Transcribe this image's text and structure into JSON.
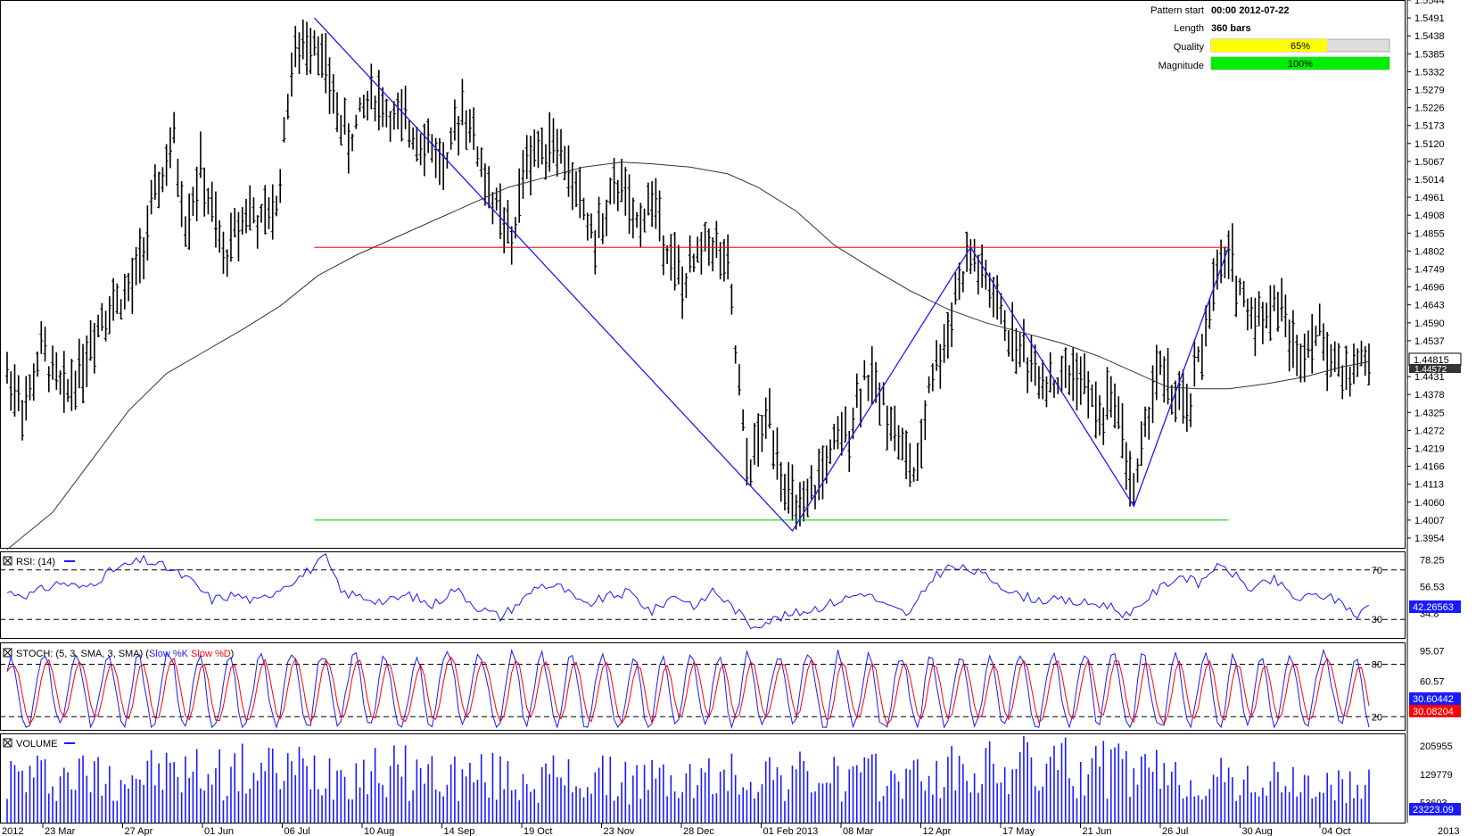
{
  "pattern_info": {
    "start_label": "Pattern start",
    "start_value": "00:00 2012-07-22",
    "length_label": "Length",
    "length_value": "360 bars",
    "quality_label": "Quality",
    "quality_value": "65%",
    "quality_fraction": 0.65,
    "magnitude_label": "Magnitude",
    "magnitude_value": "100%",
    "magnitude_fraction": 1.0
  },
  "colors": {
    "price_bar": "#000000",
    "pattern_line": "#1a1aff",
    "resistance": "#ff0000",
    "support": "#00cc00",
    "moving_average": "#333333",
    "rsi": "#1a1aff",
    "stoch_k": "#1a1aff",
    "stoch_d": "#ff0000",
    "volume": "#1a1aff",
    "quality_bar": "#ffff00",
    "magnitude_bar": "#00ee00"
  },
  "chart_data": {
    "type": "ohlc",
    "x_axis": {
      "labels": [
        "2012",
        "23 Mar",
        "27 Apr",
        "01 Jun",
        "06 Jul",
        "10 Aug",
        "14 Sep",
        "19 Oct",
        "23 Nov",
        "28 Dec",
        "01 Feb 2013",
        "08 Mar",
        "12 Apr",
        "17 May",
        "21 Jun",
        "26 Jul",
        "30 Aug",
        "04 Oct",
        "2013"
      ],
      "bar_count": 360
    },
    "price_panel": {
      "ylim": [
        1.3925,
        1.5544
      ],
      "y_ticks": [
        "1.5544",
        "1.5491",
        "1.5438",
        "1.5385",
        "1.5332",
        "1.5279",
        "1.5226",
        "1.5173",
        "1.5120",
        "1.5067",
        "1.5014",
        "1.4961",
        "1.4908",
        "1.4855",
        "1.4802",
        "1.4749",
        "1.4696",
        "1.4643",
        "1.4590",
        "1.4537",
        "1.4431",
        "1.4378",
        "1.4325",
        "1.4272",
        "1.4219",
        "1.4166",
        "1.4113",
        "1.4060",
        "1.4007",
        "1.3954"
      ],
      "current_price": "1.44815",
      "ma_price": "1.44572",
      "resistance_level": 1.4813,
      "support_level": 1.4007,
      "pattern_points": [
        {
          "bar": 81,
          "price": 1.5491
        },
        {
          "bar": 207,
          "price": 1.3975
        },
        {
          "bar": 254,
          "price": 1.4813
        },
        {
          "bar": 297,
          "price": 1.4048
        },
        {
          "bar": 322,
          "price": 1.4813
        }
      ],
      "price_path": [
        [
          0,
          1.444
        ],
        [
          5,
          1.434
        ],
        [
          9,
          1.451
        ],
        [
          15,
          1.438
        ],
        [
          20,
          1.447
        ],
        [
          25,
          1.462
        ],
        [
          33,
          1.469
        ],
        [
          40,
          1.4995
        ],
        [
          44,
          1.512
        ],
        [
          47,
          1.488
        ],
        [
          51,
          1.504
        ],
        [
          57,
          1.478
        ],
        [
          63,
          1.493
        ],
        [
          67,
          1.488
        ],
        [
          71,
          1.493
        ],
        [
          75,
          1.535
        ],
        [
          81,
          1.545
        ],
        [
          86,
          1.525
        ],
        [
          90,
          1.512
        ],
        [
          96,
          1.528
        ],
        [
          102,
          1.519
        ],
        [
          110,
          1.514
        ],
        [
          116,
          1.504
        ],
        [
          120,
          1.525
        ],
        [
          127,
          1.498
        ],
        [
          133,
          1.482
        ],
        [
          137,
          1.508
        ],
        [
          144,
          1.514
        ],
        [
          150,
          1.498
        ],
        [
          155,
          1.483
        ],
        [
          162,
          1.502
        ],
        [
          165,
          1.486
        ],
        [
          170,
          1.496
        ],
        [
          178,
          1.469
        ],
        [
          185,
          1.485
        ],
        [
          190,
          1.474
        ],
        [
          195,
          1.415
        ],
        [
          201,
          1.432
        ],
        [
          206,
          1.407
        ],
        [
          210,
          1.401
        ],
        [
          215,
          1.416
        ],
        [
          222,
          1.428
        ],
        [
          226,
          1.444
        ],
        [
          232,
          1.434
        ],
        [
          236,
          1.421
        ],
        [
          240,
          1.4125
        ],
        [
          243,
          1.442
        ],
        [
          247,
          1.452
        ],
        [
          250,
          1.468
        ],
        [
          254,
          1.479
        ],
        [
          258,
          1.471
        ],
        [
          264,
          1.456
        ],
        [
          270,
          1.447
        ],
        [
          276,
          1.441
        ],
        [
          282,
          1.445
        ],
        [
          288,
          1.431
        ],
        [
          292,
          1.438
        ],
        [
          297,
          1.408
        ],
        [
          300,
          1.427
        ],
        [
          303,
          1.446
        ],
        [
          307,
          1.438
        ],
        [
          311,
          1.432
        ],
        [
          314,
          1.447
        ],
        [
          318,
          1.469
        ],
        [
          322,
          1.479
        ],
        [
          327,
          1.463
        ],
        [
          331,
          1.461
        ],
        [
          335,
          1.466
        ],
        [
          340,
          1.449
        ],
        [
          344,
          1.457
        ],
        [
          348,
          1.452
        ],
        [
          352,
          1.443
        ],
        [
          356,
          1.447
        ],
        [
          359,
          1.448
        ]
      ],
      "moving_average_path": [
        [
          0,
          1.392
        ],
        [
          12,
          1.403
        ],
        [
          22,
          1.418
        ],
        [
          32,
          1.433
        ],
        [
          42,
          1.444
        ],
        [
          52,
          1.4505
        ],
        [
          62,
          1.457
        ],
        [
          72,
          1.464
        ],
        [
          82,
          1.473
        ],
        [
          92,
          1.479
        ],
        [
          102,
          1.484
        ],
        [
          112,
          1.489
        ],
        [
          122,
          1.494
        ],
        [
          132,
          1.499
        ],
        [
          142,
          1.502
        ],
        [
          152,
          1.505
        ],
        [
          162,
          1.5065
        ],
        [
          170,
          1.506
        ],
        [
          180,
          1.505
        ],
        [
          190,
          1.503
        ],
        [
          198,
          1.499
        ],
        [
          208,
          1.492
        ],
        [
          218,
          1.482
        ],
        [
          228,
          1.475
        ],
        [
          238,
          1.4685
        ],
        [
          248,
          1.463
        ],
        [
          258,
          1.459
        ],
        [
          268,
          1.456
        ],
        [
          278,
          1.453
        ],
        [
          288,
          1.449
        ],
        [
          296,
          1.445
        ],
        [
          306,
          1.44
        ],
        [
          314,
          1.4395
        ],
        [
          322,
          1.4395
        ],
        [
          332,
          1.441
        ],
        [
          342,
          1.443
        ],
        [
          352,
          1.446
        ],
        [
          359,
          1.4475
        ]
      ]
    },
    "rsi_panel": {
      "title": "RSI: (14)",
      "ylim": [
        15,
        85
      ],
      "levels": [
        70,
        30
      ],
      "level_labels": [
        "70",
        "30"
      ],
      "right_ticks": [
        "78.25",
        "56.53",
        "34.8"
      ],
      "current": "42.26563",
      "path": [
        [
          0,
          52
        ],
        [
          6,
          50
        ],
        [
          14,
          60
        ],
        [
          20,
          55
        ],
        [
          28,
          70
        ],
        [
          36,
          78
        ],
        [
          42,
          72
        ],
        [
          48,
          62
        ],
        [
          54,
          46
        ],
        [
          60,
          50
        ],
        [
          66,
          44
        ],
        [
          72,
          56
        ],
        [
          78,
          66
        ],
        [
          84,
          80
        ],
        [
          88,
          52
        ],
        [
          94,
          48
        ],
        [
          100,
          44
        ],
        [
          106,
          50
        ],
        [
          112,
          41
        ],
        [
          118,
          55
        ],
        [
          124,
          40
        ],
        [
          130,
          32
        ],
        [
          136,
          46
        ],
        [
          140,
          58
        ],
        [
          146,
          56
        ],
        [
          152,
          41
        ],
        [
          158,
          48
        ],
        [
          164,
          52
        ],
        [
          170,
          36
        ],
        [
          176,
          50
        ],
        [
          182,
          40
        ],
        [
          186,
          54
        ],
        [
          192,
          38
        ],
        [
          196,
          25
        ],
        [
          202,
          30
        ],
        [
          208,
          35
        ],
        [
          214,
          40
        ],
        [
          220,
          46
        ],
        [
          226,
          52
        ],
        [
          232,
          40
        ],
        [
          238,
          34
        ],
        [
          244,
          64
        ],
        [
          248,
          72
        ],
        [
          254,
          70
        ],
        [
          260,
          62
        ],
        [
          266,
          50
        ],
        [
          272,
          46
        ],
        [
          278,
          45
        ],
        [
          284,
          43
        ],
        [
          290,
          42
        ],
        [
          296,
          32
        ],
        [
          300,
          46
        ],
        [
          306,
          60
        ],
        [
          310,
          66
        ],
        [
          314,
          58
        ],
        [
          318,
          72
        ],
        [
          322,
          70
        ],
        [
          328,
          54
        ],
        [
          334,
          62
        ],
        [
          340,
          46
        ],
        [
          346,
          50
        ],
        [
          352,
          44
        ],
        [
          356,
          32
        ],
        [
          359,
          42
        ]
      ]
    },
    "stoch_panel": {
      "title": "STOCH: (5, 3, SMA, 3, SMA)",
      "legend": {
        "k": "Slow %K",
        "d": "Slow %D"
      },
      "ylim": [
        5,
        105
      ],
      "levels": [
        80,
        20
      ],
      "level_labels": [
        "80",
        "20"
      ],
      "right_ticks": [
        "95.07",
        "60.57"
      ],
      "current_k": "30.60442",
      "current_d": "30.08204",
      "cycles": 44
    },
    "volume_panel": {
      "title": "VOLUME",
      "ylim": [
        0,
        240000
      ],
      "right_ticks": [
        "205955",
        "129779",
        "53603"
      ],
      "current": "23223.09",
      "levels": [
        [
          0,
          150000
        ],
        [
          60,
          165000
        ],
        [
          90,
          175000
        ],
        [
          120,
          150000
        ],
        [
          150,
          140000
        ],
        [
          180,
          135000
        ],
        [
          200,
          160000
        ],
        [
          220,
          140000
        ],
        [
          240,
          150000
        ],
        [
          270,
          185000
        ],
        [
          290,
          175000
        ],
        [
          310,
          140000
        ],
        [
          330,
          130000
        ],
        [
          359,
          110000
        ]
      ]
    }
  }
}
